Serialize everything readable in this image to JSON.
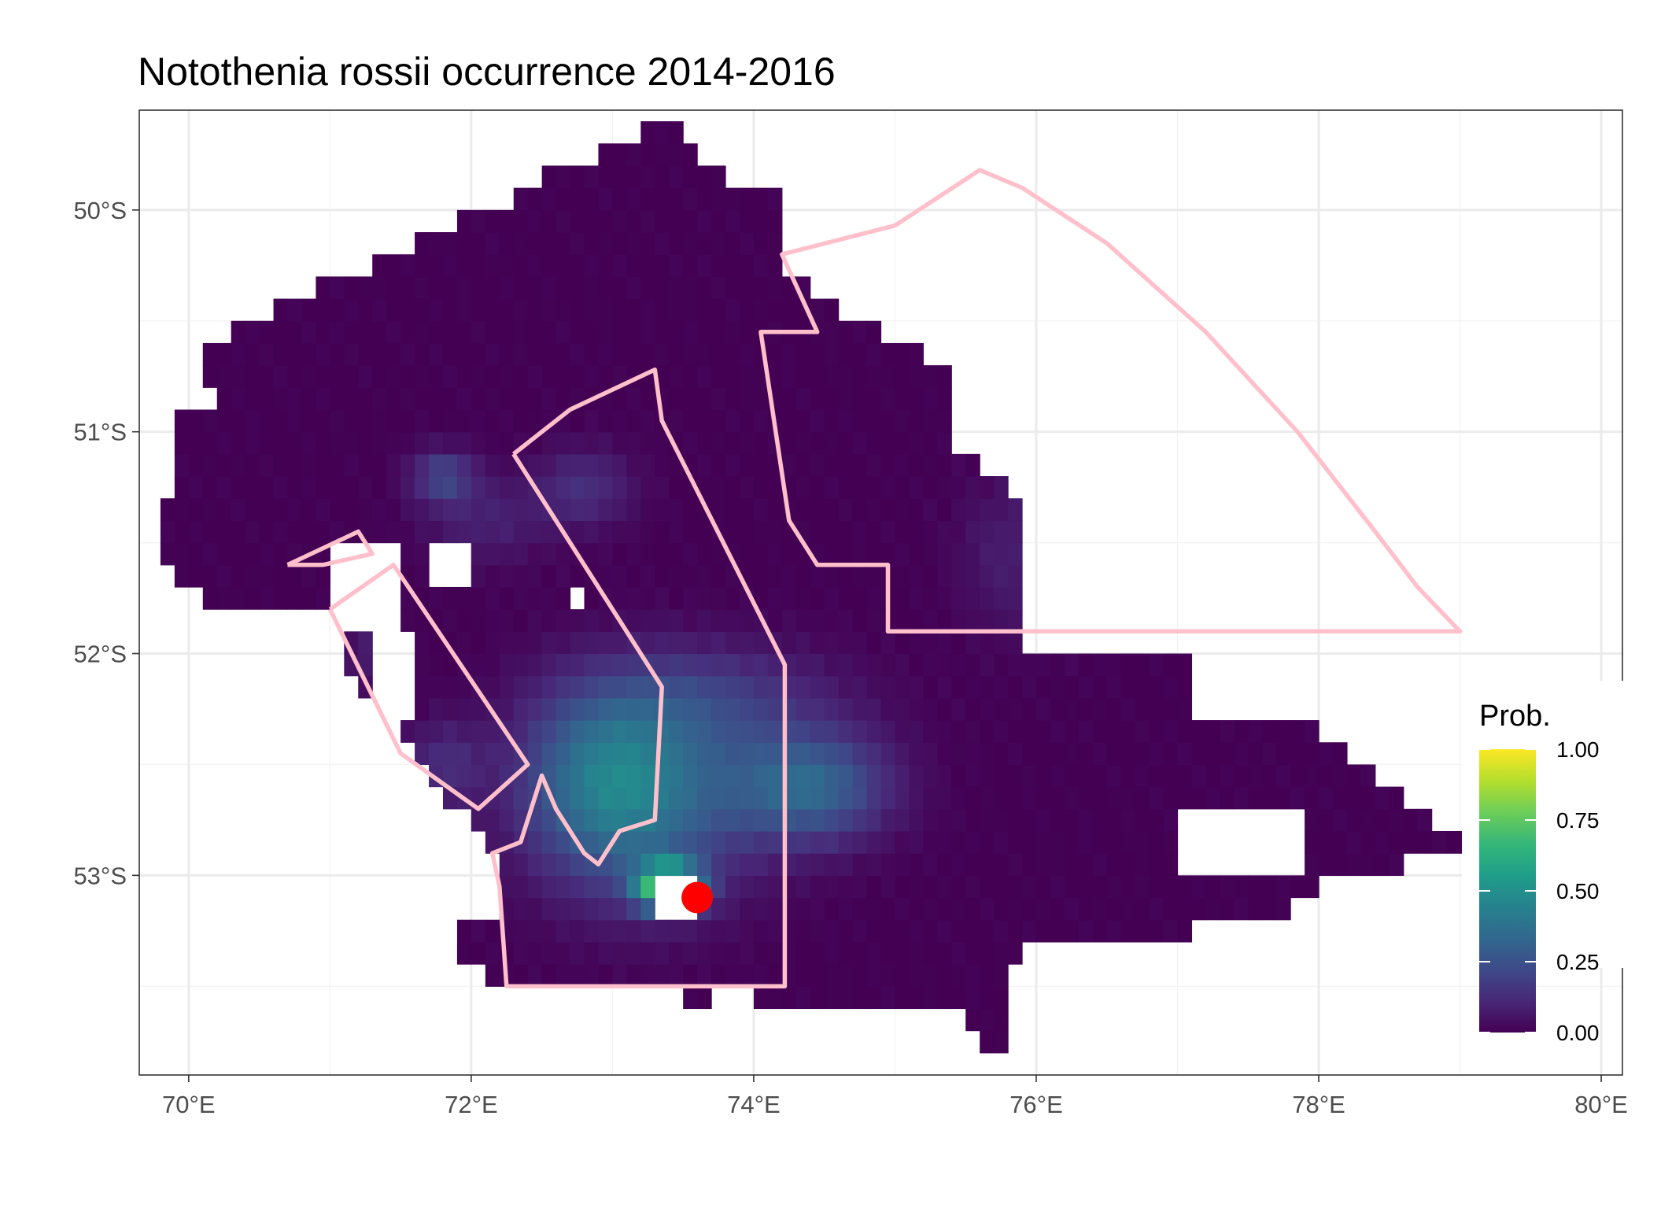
{
  "title": "Notothenia rossii  occurrence 2014-2016",
  "chart_data": {
    "type": "heatmap",
    "title": "Notothenia rossii  occurrence 2014-2016",
    "xlim": [
      69.65,
      80.15
    ],
    "ylim": [
      -53.9,
      -49.55
    ],
    "x_ticks": [
      {
        "value": 70,
        "label": "70°E"
      },
      {
        "value": 72,
        "label": "72°E"
      },
      {
        "value": 74,
        "label": "74°E"
      },
      {
        "value": 76,
        "label": "76°E"
      },
      {
        "value": 78,
        "label": "78°E"
      },
      {
        "value": 80,
        "label": "80°E"
      }
    ],
    "y_ticks": [
      {
        "value": -50,
        "label": "50°S"
      },
      {
        "value": -51,
        "label": "51°S"
      },
      {
        "value": -52,
        "label": "52°S"
      },
      {
        "value": -53,
        "label": "53°S"
      }
    ],
    "grid": true,
    "cell_size_deg": 0.1,
    "background_probability": 0.0,
    "land_mask": [
      [
        73.3,
        -53.15
      ],
      [
        73.6,
        -52.95
      ]
    ],
    "colorscale": {
      "name": "viridis",
      "stops": [
        "#440154",
        "#482878",
        "#3e4a89",
        "#31688e",
        "#26828e",
        "#1f9e89",
        "#35b779",
        "#6dcd59",
        "#b4de2c",
        "#fde725"
      ]
    },
    "legend": {
      "title": "Prob.",
      "placement": "right",
      "range": [
        0,
        1
      ],
      "ticks": [
        {
          "value": 1.0,
          "label": "1.00"
        },
        {
          "value": 0.75,
          "label": "0.75"
        },
        {
          "value": 0.5,
          "label": "0.50"
        },
        {
          "value": 0.25,
          "label": "0.25"
        },
        {
          "value": 0.0,
          "label": "0.00"
        }
      ]
    },
    "point": {
      "lon": 73.6,
      "lat": -53.1,
      "color": "#ff0000"
    },
    "boundary_color": "#ffc0cb",
    "boundaries": [
      [
        [
          75.0,
          -50.07
        ],
        [
          75.6,
          -49.82
        ],
        [
          75.9,
          -49.9
        ],
        [
          76.5,
          -50.15
        ],
        [
          77.2,
          -50.55
        ],
        [
          77.85,
          -51.0
        ],
        [
          78.4,
          -51.45
        ],
        [
          78.7,
          -51.7
        ],
        [
          79.0,
          -51.9
        ],
        [
          74.95,
          -51.9
        ],
        [
          74.95,
          -51.6
        ],
        [
          74.45,
          -51.6
        ],
        [
          74.25,
          -51.4
        ],
        [
          74.05,
          -50.55
        ],
        [
          74.45,
          -50.55
        ],
        [
          74.2,
          -50.2
        ],
        [
          75.0,
          -50.07
        ]
      ],
      [
        [
          72.3,
          -51.1
        ],
        [
          72.7,
          -50.9
        ],
        [
          73.3,
          -50.72
        ],
        [
          73.35,
          -50.95
        ],
        [
          74.22,
          -52.05
        ],
        [
          74.22,
          -53.5
        ],
        [
          72.25,
          -53.5
        ],
        [
          72.2,
          -53.05
        ],
        [
          72.15,
          -52.9
        ],
        [
          72.35,
          -52.85
        ],
        [
          72.5,
          -52.55
        ],
        [
          72.6,
          -52.7
        ],
        [
          72.8,
          -52.9
        ],
        [
          72.9,
          -52.95
        ],
        [
          73.05,
          -52.8
        ],
        [
          73.3,
          -52.75
        ],
        [
          73.35,
          -52.15
        ],
        [
          72.3,
          -51.1
        ]
      ],
      [
        [
          71.0,
          -51.8
        ],
        [
          71.45,
          -51.6
        ],
        [
          72.4,
          -52.5
        ],
        [
          72.05,
          -52.7
        ],
        [
          71.5,
          -52.45
        ],
        [
          71.0,
          -51.8
        ]
      ],
      [
        [
          70.7,
          -51.6
        ],
        [
          71.2,
          -51.45
        ],
        [
          71.3,
          -51.55
        ],
        [
          70.95,
          -51.6
        ],
        [
          70.7,
          -51.6
        ]
      ]
    ]
  }
}
